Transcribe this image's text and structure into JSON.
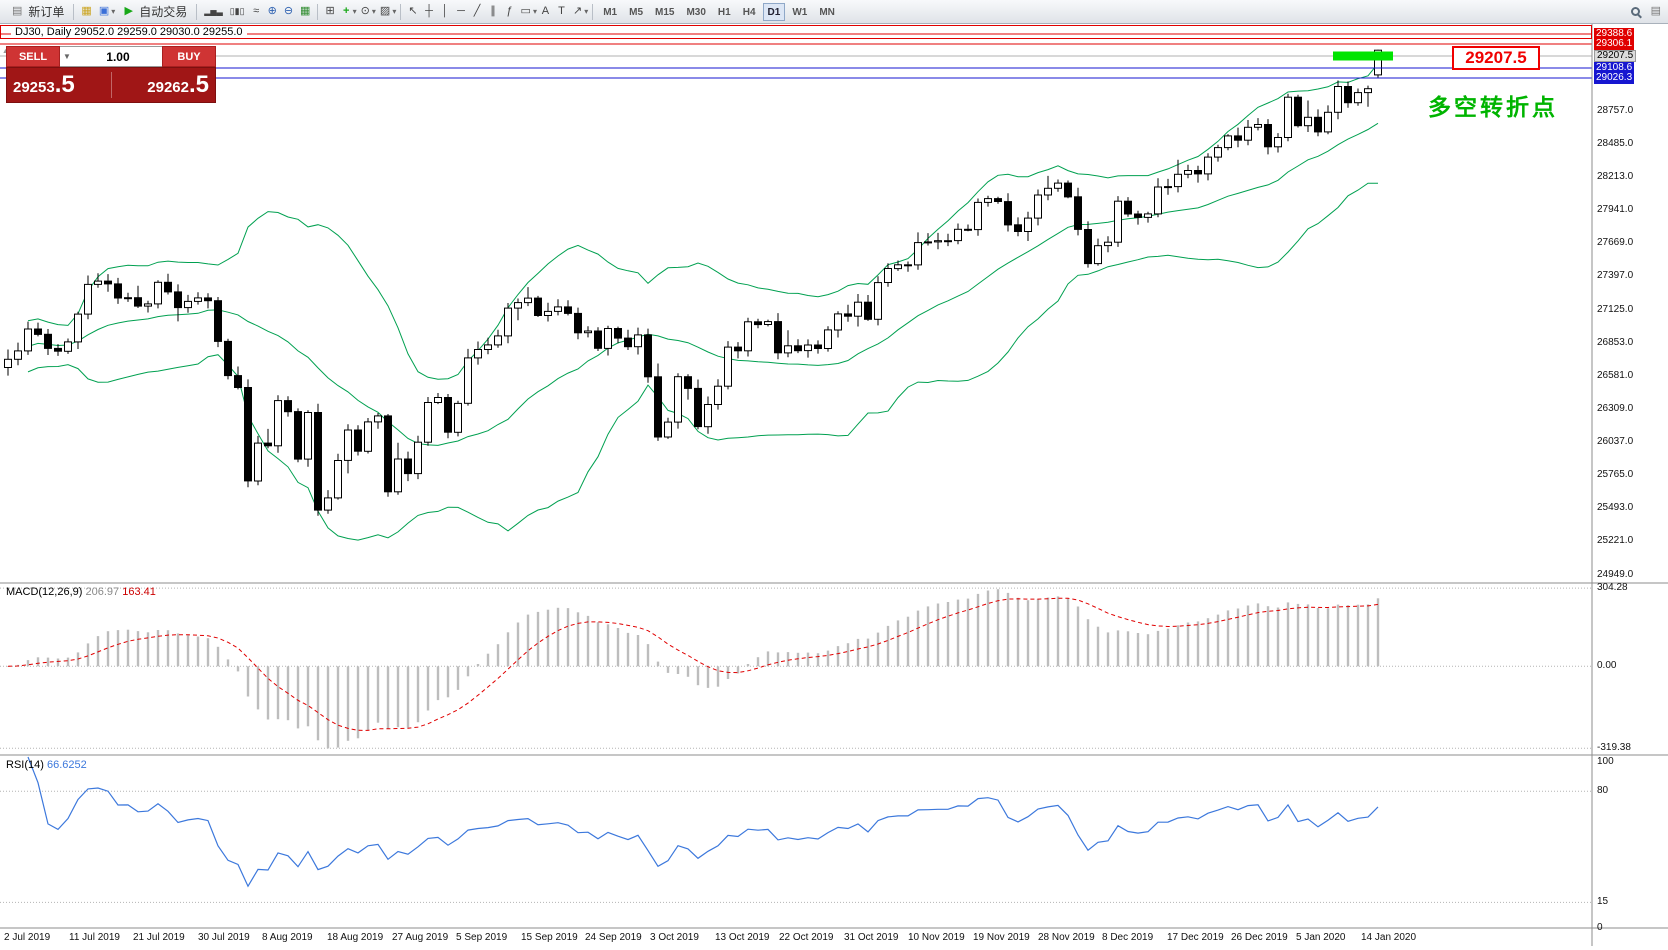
{
  "colors": {
    "bollinger": "#00a050",
    "macd_histogram": "#bdbdbd",
    "macd_signal": "#e00000",
    "rsi_line": "#3c78dc",
    "highlight": "#00e400",
    "hline_red": "#e00000",
    "hline_blue": "#1616d0",
    "hline_gray": "#b0b0b0",
    "panel_red": "#cf3434",
    "panel_dark_red": "#a01616",
    "annotation_red": "#f00000",
    "accent_green_text": "#00b400"
  },
  "icons": {
    "new_order": "▤",
    "new_chart": "▦",
    "profiles": "▣",
    "autotrading_play": "▶",
    "bar_chart": "▂▅▃",
    "candle_chart": "▯▮▯",
    "line_chart": "≈",
    "zoom_in": "⊕",
    "zoom_out": "⊖",
    "grid": "▦",
    "tile_windows": "⊞",
    "add_indicator": "+",
    "period": "⊙",
    "template": "▨",
    "cursor": "↖",
    "crosshair": "┼",
    "vertical_line": "│",
    "horizontal_line": "─",
    "trendline": "╱",
    "channel": "∥",
    "fibonacci": "ƒ",
    "shapes": "▭",
    "text_tool": "A",
    "label_tool": "T",
    "arrow_tool": "↗",
    "dropdown": "▾",
    "collapse_panel": "▲",
    "spinner_down": "▼",
    "data_window": "▤"
  },
  "toolbar": {
    "new_order_label": "新订单",
    "autotrading_label": "自动交易",
    "timeframes": [
      "M1",
      "M5",
      "M15",
      "M30",
      "H1",
      "H4",
      "D1",
      "W1",
      "MN"
    ],
    "active_timeframe": "D1"
  },
  "chart": {
    "caption": "DJ30, Daily  29052.0 29259.0 29030.0 29255.0",
    "symbol": "DJ30",
    "period": "Daily"
  },
  "trade_panel": {
    "sell_label": "SELL",
    "buy_label": "BUY",
    "volume": "1.00",
    "sell_price_main": "29253",
    "sell_price_big": ".5",
    "buy_price_main": "29262",
    "buy_price_big": ".5"
  },
  "annotations": {
    "price_label": "29207.5",
    "turning_point": "多空转折点"
  },
  "price_axis": {
    "tagged": [
      {
        "label": "29388.6",
        "value": 29388.6,
        "style": "red"
      },
      {
        "label": "29306.1",
        "value": 29306.1,
        "style": "red"
      },
      {
        "label": "29207.5",
        "value": 29207.5,
        "style": "gray"
      },
      {
        "label": "29108.6",
        "value": 29108.6,
        "style": "blue"
      },
      {
        "label": "29026.3",
        "value": 29026.3,
        "style": "blue"
      }
    ],
    "gridline_labels": [
      "28757.0",
      "28485.0",
      "28213.0",
      "27941.0",
      "27669.0",
      "27397.0",
      "27125.0",
      "26853.0",
      "26581.0",
      "26309.0",
      "26037.0",
      "25765.0",
      "25493.0",
      "25221.0",
      "24949.0"
    ]
  },
  "macd": {
    "label": "MACD(12,26,9)",
    "value_main": "206.97",
    "value_signal": "163.41",
    "axis": [
      "304.28",
      "0.00",
      "-319.38"
    ],
    "levels": [
      304.28,
      0,
      -319.38
    ]
  },
  "rsi": {
    "label": "RSI(14)",
    "value": "66.6252",
    "axis": [
      "100",
      "80",
      "15",
      "0"
    ],
    "axis_values": [
      100,
      80,
      15,
      0
    ],
    "levels": [
      80,
      15
    ]
  },
  "chart_data": {
    "type": "candlestick",
    "title": "DJ30, Daily",
    "symbol": "DJ30",
    "timeframe": "Daily",
    "x_labels": [
      "2 Jul 2019",
      "11 Jul 2019",
      "21 Jul 2019",
      "30 Jul 2019",
      "8 Aug 2019",
      "18 Aug 2019",
      "27 Aug 2019",
      "5 Sep 2019",
      "15 Sep 2019",
      "24 Sep 2019",
      "3 Oct 2019",
      "13 Oct 2019",
      "22 Oct 2019",
      "31 Oct 2019",
      "10 Nov 2019",
      "19 Nov 2019",
      "28 Nov 2019",
      "8 Dec 2019",
      "17 Dec 2019",
      "26 Dec 2019",
      "5 Jan 2020",
      "14 Jan 2020"
    ],
    "first_open": 26650,
    "closes": [
      26717,
      26786,
      26966,
      26922,
      26806,
      26783,
      26860,
      27088,
      27332,
      27359,
      27336,
      27220,
      27223,
      27154,
      27172,
      27349,
      27270,
      27141,
      27192,
      27221,
      27198,
      26864,
      26583,
      26485,
      25718,
      26029,
      26007,
      26378,
      26287,
      25897,
      26280,
      25479,
      25579,
      25886,
      26136,
      25962,
      26203,
      26252,
      25629,
      25898,
      25778,
      26036,
      26362,
      26403,
      26118,
      26355,
      26728,
      26797,
      26835,
      26909,
      27137,
      27182,
      27219,
      27076,
      27110,
      27147,
      27094,
      26935,
      26949,
      26807,
      26970,
      26891,
      26820,
      26917,
      26573,
      26079,
      26201,
      26574,
      26478,
      26164,
      26346,
      26496,
      26817,
      26787,
      27025,
      27002,
      27026,
      26770,
      26828,
      26788,
      26834,
      26805,
      26958,
      27090,
      27071,
      27186,
      27046,
      27347,
      27462,
      27493,
      27492,
      27675,
      27681,
      27691,
      27691,
      27784,
      27782,
      28005,
      28036,
      28012,
      27821,
      27766,
      27876,
      28066,
      28121,
      28164,
      28051,
      27783,
      27503,
      27650,
      27678,
      28015,
      27910,
      27882,
      27911,
      28132,
      28135,
      28236,
      28267,
      28239,
      28377,
      28455,
      28551,
      28516,
      28622,
      28645,
      28462,
      28538,
      28869,
      28635,
      28704,
      28584,
      28745,
      28957,
      28824,
      28907,
      28939,
      29255
    ],
    "last_ohlc": [
      29052.0,
      29259.0,
      29030.0,
      29255.0
    ],
    "visible_price_range": [
      24949.0,
      29388.6
    ],
    "price_gridlines": [
      28757.0,
      28485.0,
      28213.0,
      27941.0,
      27669.0,
      27397.0,
      27125.0,
      26853.0,
      26581.0,
      26309.0,
      26037.0,
      25765.0,
      25493.0,
      25221.0,
      24949.0
    ],
    "horizontal_lines": [
      {
        "value": 29388.6,
        "color": "red"
      },
      {
        "value": 29306.1,
        "color": "red"
      },
      {
        "value": 29207.5,
        "color": "gray"
      },
      {
        "value": 29108.6,
        "color": "blue"
      },
      {
        "value": 29026.3,
        "color": "blue"
      }
    ],
    "highlight_rect_price": 29207.5,
    "indicators": [
      {
        "type": "bollinger",
        "period": 20,
        "deviation": 2,
        "applied_to": "main"
      },
      {
        "type": "macd",
        "fast": 12,
        "slow": 26,
        "signal": 9,
        "current_main": 206.97,
        "current_signal": 163.41,
        "axis_values": [
          304.28,
          0.0,
          -319.38
        ]
      },
      {
        "type": "rsi",
        "period": 14,
        "current": 66.6252,
        "levels": [
          80,
          15
        ],
        "axis_values": [
          100,
          80,
          15,
          0
        ]
      }
    ]
  }
}
